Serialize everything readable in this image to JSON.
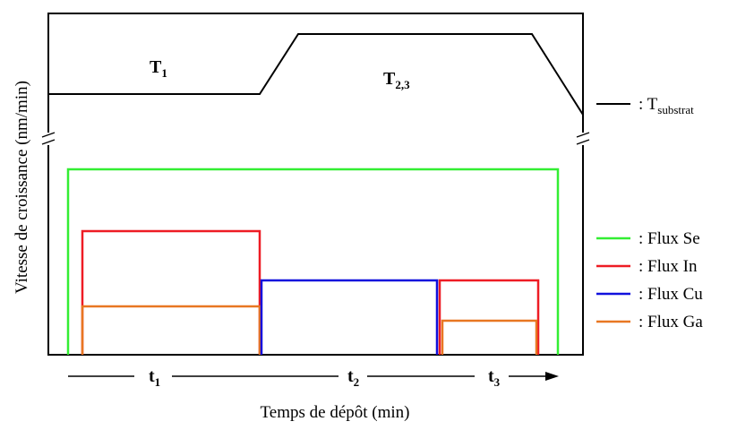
{
  "title": "",
  "xlabel": "Temps de dépôt (min)",
  "ylabel": "Vitesse de croissance (nm/min)",
  "temperature_labels": [
    {
      "main": "T",
      "sub": "1"
    },
    {
      "main": "T",
      "sub": "2,3"
    }
  ],
  "time_labels": [
    {
      "main": "t",
      "sub": "1"
    },
    {
      "main": "t",
      "sub": "2"
    },
    {
      "main": "t",
      "sub": "3"
    }
  ],
  "legend": {
    "substrate": {
      "prefix": ": T",
      "sub": "substrat",
      "color": "#000000"
    },
    "flux": [
      {
        "label": ": Flux Se",
        "color": "#33ee33"
      },
      {
        "label": ": Flux In",
        "color": "#ee1c24"
      },
      {
        "label": ": Flux Cu",
        "color": "#1010dd"
      },
      {
        "label": ": Flux Ga",
        "color": "#e87722"
      }
    ]
  },
  "colors": {
    "axis": "#000000",
    "Se": "#33ee33",
    "In": "#ee1c24",
    "Cu": "#1010dd",
    "Ga": "#e87722"
  }
}
